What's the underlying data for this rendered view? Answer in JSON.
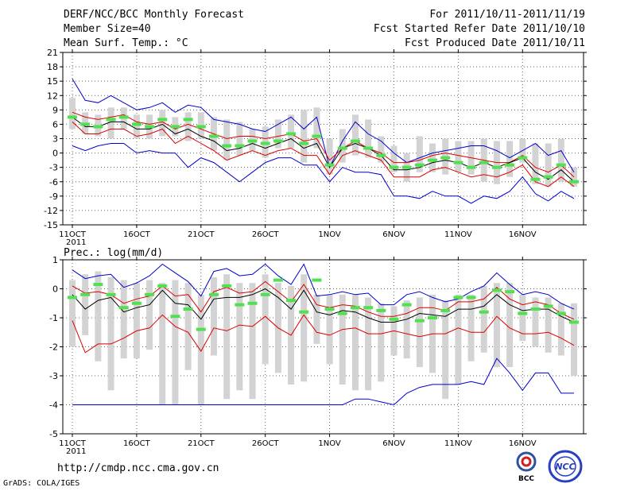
{
  "header": {
    "title": "DERF/NCC/BCC Monthly Forecast",
    "member_size": "Member Size=40",
    "variable": "Mean Surf. Temp.: °C",
    "period": "For 2011/10/11-2011/11/19",
    "started": "Fcst Started Refer Date 2011/10/10",
    "produced": "Fcst Produced Date 2011/10/11"
  },
  "footer": {
    "url": "http://cmdp.ncc.cma.gov.cn",
    "credit": "GrADS: COLA/IGES",
    "logo_bcc": "BCC",
    "logo_ncc": "NCC"
  },
  "colors": {
    "box": "#d3d3d3",
    "median": "#50e050",
    "mean": "#000000",
    "spread": "#dd0000",
    "extreme": "#0000cc",
    "grid": "#666666"
  },
  "chart_data": [
    {
      "type": "box",
      "name": "temperature",
      "ylabel": "Mean Surf. Temp.: °C",
      "ylim": [
        -15,
        21
      ],
      "yticks": [
        -15,
        -12,
        -9,
        -6,
        -3,
        0,
        3,
        6,
        9,
        12,
        15,
        18,
        21
      ],
      "xlim": [
        0,
        39
      ],
      "xticks": [
        0,
        5,
        10,
        15,
        20,
        25,
        30,
        35
      ],
      "xticklabels": [
        "11OCT",
        "16OCT",
        "21OCT",
        "26OCT",
        "1NOV",
        "6NOV",
        "11NOV",
        "16NOV"
      ],
      "year_label": "2011",
      "x_start": 1,
      "max": [
        15.5,
        11,
        10.5,
        12,
        10.5,
        9,
        9.5,
        10.5,
        8.5,
        10,
        9.5,
        7,
        6.5,
        6,
        5,
        4.5,
        6,
        7.5,
        5,
        7.5,
        -3,
        2.5,
        6.5,
        4,
        2.5,
        0,
        -2,
        -1,
        0,
        0.5,
        1,
        1.5,
        1.5,
        0.5,
        -1,
        0.5,
        2,
        -0.5,
        0.5,
        -4
      ],
      "box_top": [
        11.5,
        8.5,
        8,
        9.5,
        9.5,
        8,
        8,
        9,
        7.5,
        8.5,
        8.5,
        7.5,
        7,
        6.5,
        5,
        5.5,
        7,
        8,
        9,
        9.5,
        3,
        5,
        8,
        7,
        3.5,
        1.5,
        0,
        3.5,
        2,
        3,
        2.5,
        2.5,
        3,
        2.5,
        2.5,
        3,
        2,
        2,
        3,
        -3
      ],
      "p_hi": [
        8.5,
        7.5,
        7,
        7.5,
        8,
        6.5,
        6,
        6.5,
        5,
        6,
        5,
        4,
        3,
        3.5,
        3.5,
        3,
        3.5,
        4,
        2.5,
        3,
        -1.5,
        1,
        2.5,
        1,
        0,
        -2,
        -2,
        -1.5,
        -0.5,
        0,
        -0.5,
        -1,
        -1.5,
        -2,
        -2,
        -0.5,
        -3,
        -4,
        -2.5,
        -5
      ],
      "median": [
        7.5,
        6,
        5.5,
        7,
        7.5,
        6,
        5.5,
        7,
        5.5,
        7,
        5.5,
        3.5,
        1.5,
        1.5,
        2.5,
        2,
        2.5,
        4,
        2,
        3.5,
        -2.5,
        1,
        2.5,
        1,
        -0.5,
        -3,
        -3,
        -2.5,
        -1.5,
        -1,
        -2,
        -3,
        -2,
        -3,
        -2.5,
        -1,
        -5.5,
        -5,
        -2.5,
        -6
      ],
      "mean": [
        7.5,
        5.5,
        5.5,
        6.5,
        6.5,
        5,
        5,
        6,
        4,
        5,
        3.5,
        2.5,
        0.5,
        1,
        2,
        1,
        2,
        3,
        1,
        2,
        -3,
        1,
        2,
        1,
        -0.5,
        -3.5,
        -3.5,
        -3,
        -2,
        -1.5,
        -2,
        -3,
        -2,
        -3,
        -2,
        -1,
        -4,
        -5.5,
        -3.5,
        -6
      ],
      "p_lo": [
        6.5,
        4,
        4,
        5,
        5,
        3.5,
        4,
        5,
        2,
        3.5,
        2,
        0.5,
        -1.5,
        -0.5,
        0.5,
        -0.5,
        0.5,
        1,
        -0.5,
        -0.5,
        -4.5,
        -0.5,
        0.5,
        -0.5,
        -1.5,
        -5,
        -5,
        -5,
        -3.5,
        -3,
        -4,
        -5,
        -4.5,
        -5,
        -4,
        -2.5,
        -6,
        -7,
        -5,
        -7
      ],
      "box_bot": [
        5,
        4,
        3.5,
        3,
        5,
        3,
        3,
        3.5,
        3.5,
        2.5,
        3,
        0.5,
        -1.5,
        -0.5,
        0.5,
        -1,
        1,
        1,
        -2,
        1,
        -4.5,
        -2,
        -0.5,
        -1,
        -2,
        -4,
        -6,
        -4,
        -4,
        -4.5,
        -4,
        -4.5,
        -6,
        -6.5,
        -5,
        -2,
        -6.5,
        -7,
        -6,
        -7
      ],
      "min": [
        1.5,
        0.5,
        1.5,
        2,
        2,
        0,
        0.5,
        0,
        0,
        -3,
        -1,
        -2,
        -4,
        -6,
        -4,
        -2,
        -1,
        -1,
        -2.5,
        -2.5,
        -6,
        -3,
        -4,
        -4,
        -4.5,
        -9,
        -9,
        -9.5,
        -8,
        -9,
        -9,
        -10.5,
        -9,
        -9.5,
        -8,
        -5,
        -8.5,
        -10,
        -8,
        -9.5
      ]
    },
    {
      "type": "box",
      "name": "precipitation",
      "ylabel": "Prec.: log(mm/d)",
      "ylim": [
        -5,
        1
      ],
      "yticks": [
        -5,
        -4,
        -3,
        -2,
        -1,
        0,
        1
      ],
      "xlim": [
        0,
        39
      ],
      "xticks": [
        0,
        5,
        10,
        15,
        20,
        25,
        30,
        35
      ],
      "xticklabels": [
        "11OCT",
        "16OCT",
        "21OCT",
        "26OCT",
        "1NOV",
        "6NOV",
        "11NOV",
        "16NOV"
      ],
      "year_label": "2011",
      "x_start": 1,
      "max": [
        0.65,
        0.35,
        0.45,
        0.5,
        0.05,
        0.2,
        0.45,
        0.85,
        0.55,
        0.25,
        -0.25,
        0.6,
        0.7,
        0.45,
        0.5,
        0.85,
        0.45,
        0.15,
        0.85,
        -0.25,
        -0.2,
        -0.1,
        -0.2,
        -0.15,
        -0.55,
        -0.55,
        -0.2,
        -0.1,
        -0.3,
        -0.45,
        -0.35,
        -0.1,
        0.1,
        0.55,
        0.15,
        -0.2,
        -0.1,
        -0.2,
        -0.5,
        -0.7
      ],
      "box_top": [
        0.3,
        0.5,
        0.6,
        0.4,
        0.3,
        0.2,
        0.3,
        0.2,
        0.3,
        0.2,
        -0.2,
        0.4,
        0.5,
        0.2,
        0.2,
        0.5,
        0.2,
        0.1,
        0.5,
        -0.2,
        -0.2,
        -0.2,
        -0.2,
        -0.3,
        -0.5,
        -0.6,
        -0.4,
        -0.3,
        -0.2,
        -0.4,
        -0.2,
        -0.2,
        0.1,
        0.2,
        0.2,
        -0.2,
        -0.3,
        -0.3,
        -0.5,
        -0.5
      ],
      "p_hi": [
        0.1,
        -0.15,
        -0.1,
        -0.2,
        -0.5,
        -0.35,
        -0.25,
        0.1,
        -0.25,
        -0.2,
        -0.8,
        -0.1,
        0.05,
        -0.15,
        -0.1,
        0.25,
        -0.1,
        -0.45,
        0.15,
        -0.55,
        -0.65,
        -0.55,
        -0.6,
        -0.8,
        -0.95,
        -0.95,
        -0.85,
        -0.65,
        -0.65,
        -0.75,
        -0.45,
        -0.45,
        -0.35,
        0.05,
        -0.35,
        -0.55,
        -0.45,
        -0.55,
        -0.85,
        -1.05
      ],
      "median": [
        -0.3,
        -0.2,
        0.15,
        -0.2,
        -0.65,
        -0.5,
        -0.2,
        0.1,
        -0.95,
        -0.7,
        -1.4,
        -0.2,
        0.1,
        -0.55,
        -0.5,
        -0.2,
        0.3,
        -0.4,
        -0.8,
        0.3,
        -0.7,
        -0.85,
        -0.65,
        -0.65,
        -0.75,
        -1.05,
        -0.55,
        -1.1,
        -1,
        -0.75,
        -0.3,
        -0.3,
        -0.8,
        -0.05,
        -0.1,
        -0.85,
        -0.7,
        -0.6,
        -0.85,
        -1.15
      ],
      "mean": [
        -0.2,
        -0.7,
        -0.4,
        -0.3,
        -0.8,
        -0.65,
        -0.55,
        -0.05,
        -0.5,
        -0.55,
        -1.05,
        -0.35,
        -0.3,
        -0.3,
        -0.2,
        0,
        -0.3,
        -0.7,
        -0.05,
        -0.8,
        -0.9,
        -0.75,
        -0.8,
        -1,
        -1.15,
        -1.15,
        -1.05,
        -0.85,
        -0.9,
        -0.95,
        -0.7,
        -0.7,
        -0.6,
        -0.2,
        -0.55,
        -0.75,
        -0.7,
        -0.7,
        -0.95,
        -1.15
      ],
      "p_lo": [
        -1.1,
        -2.2,
        -1.9,
        -1.9,
        -1.7,
        -1.45,
        -1.35,
        -0.9,
        -1.3,
        -1.5,
        -2.15,
        -1.35,
        -1.45,
        -1.25,
        -1.3,
        -0.95,
        -1.35,
        -1.6,
        -0.9,
        -1.5,
        -1.6,
        -1.4,
        -1.35,
        -1.55,
        -1.55,
        -1.45,
        -1.55,
        -1.65,
        -1.55,
        -1.55,
        -1.35,
        -1.5,
        -1.5,
        -0.95,
        -1.35,
        -1.55,
        -1.55,
        -1.5,
        -1.7,
        -1.95
      ],
      "min": [
        -4,
        -4,
        -4,
        -4,
        -4,
        -4,
        -4,
        -4,
        -4,
        -4,
        -4,
        -4,
        -4,
        -4,
        -4,
        -4,
        -4,
        -4,
        -4,
        -4,
        -4,
        -4,
        -3.8,
        -3.8,
        -3.9,
        -4,
        -3.6,
        -3.4,
        -3.3,
        -3.3,
        -3.3,
        -3.2,
        -3.3,
        -2.4,
        -2.9,
        -3.5,
        -2.9,
        -2.9,
        -3.6,
        -3.6
      ],
      "box_bot": [
        -2,
        -1.6,
        -2.5,
        -3.5,
        -2.4,
        -2.4,
        -2.1,
        -4,
        -4,
        -2.8,
        -4,
        -2.3,
        -3.8,
        -3.5,
        -3.8,
        -2.6,
        -2.9,
        -3.3,
        -3.2,
        -1.9,
        -2.6,
        -3.3,
        -3.5,
        -3.5,
        -3.2,
        -2.3,
        -2.4,
        -2.7,
        -2.9,
        -3.8,
        -3.3,
        -2.5,
        -2.2,
        -2.7,
        -2.7,
        -1.8,
        -2,
        -2.2,
        -2.3,
        -3
      ]
    }
  ]
}
